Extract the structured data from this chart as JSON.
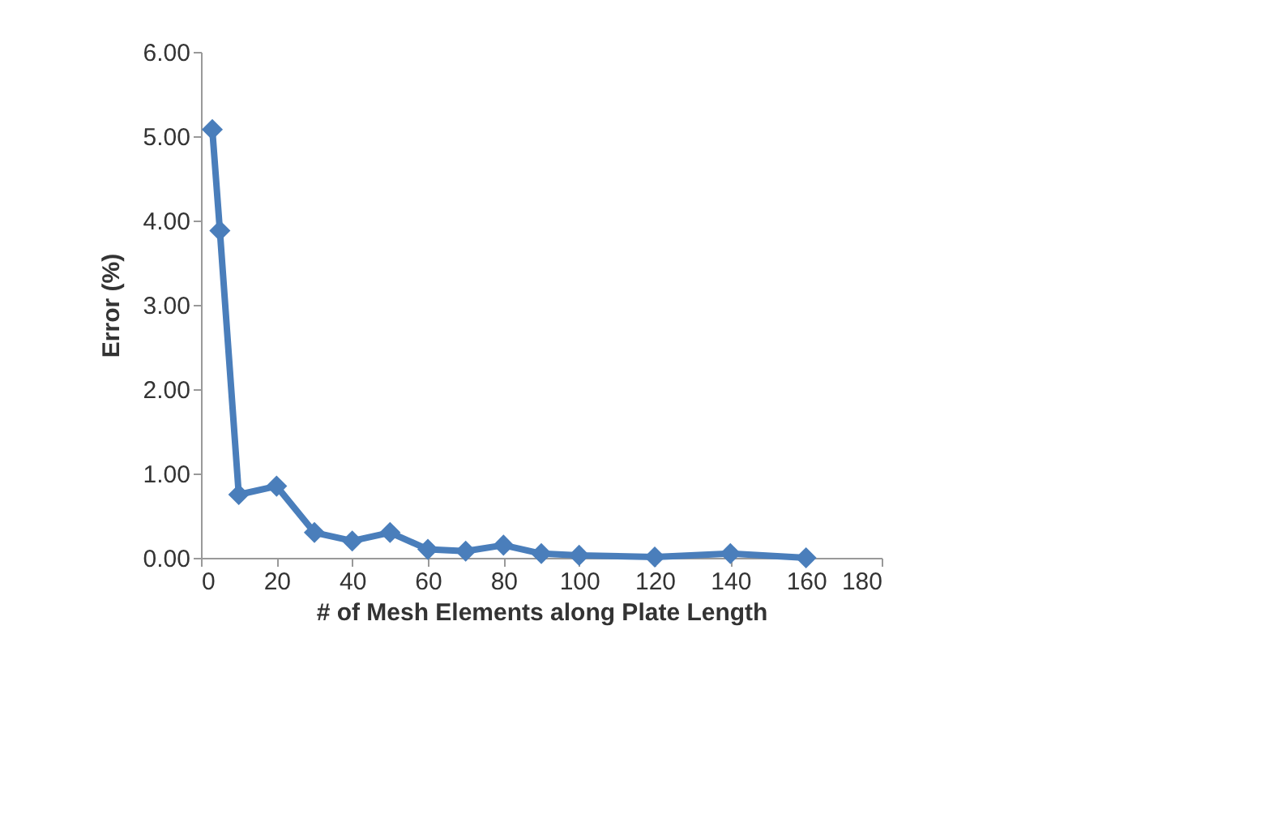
{
  "chart_data": {
    "type": "line",
    "xlabel": "# of Mesh Elements along Plate Length",
    "ylabel": "Error (%)",
    "x": [
      3,
      5,
      10,
      20,
      30,
      40,
      50,
      60,
      70,
      80,
      90,
      100,
      120,
      140,
      160
    ],
    "series": [
      {
        "color": "#4a7ebb",
        "values": [
          5.08,
          3.88,
          0.75,
          0.85,
          0.3,
          0.2,
          0.3,
          0.1,
          0.08,
          0.15,
          0.05,
          0.03,
          0.01,
          0.05,
          0.0
        ]
      }
    ],
    "xlim": [
      0,
      180
    ],
    "xticks": [
      0,
      20,
      40,
      60,
      80,
      100,
      120,
      140,
      160,
      180
    ],
    "ylim": [
      0,
      6
    ],
    "yticks": [
      {
        "value": 0,
        "label": "0.00"
      },
      {
        "value": 1,
        "label": "1.00"
      },
      {
        "value": 2,
        "label": "2.00"
      },
      {
        "value": 3,
        "label": "3.00"
      },
      {
        "value": 4,
        "label": "4.00"
      },
      {
        "value": 5,
        "label": "5.00"
      },
      {
        "value": 6,
        "label": "6.00"
      }
    ],
    "grid": false,
    "legend": false,
    "marker": "diamond",
    "line_style": "solid"
  }
}
